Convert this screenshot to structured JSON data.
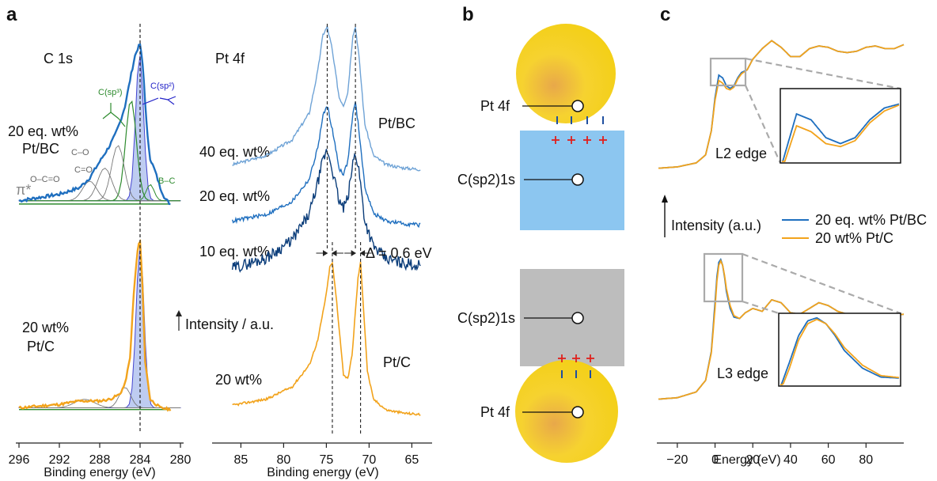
{
  "panels": {
    "a": "a",
    "b": "b",
    "c": "c"
  },
  "colors": {
    "pt_bc": "#1f6fbf",
    "pt_bc_light": "#6fa3d6",
    "pt_bc_dark": "#0b3d7a",
    "pt_c": "#f2a31c",
    "green": "#2e8b2e",
    "blue_fill": "#b3c4ef",
    "sp2_box": "#8cc6f0",
    "gray_box": "#bdbdbd",
    "gold": "#f5cc1c",
    "red_plus": "#e0201c"
  },
  "chart_data": [
    {
      "type": "line",
      "panel": "a-left",
      "title": "C 1s",
      "xlabel": "Binding energy (eV)",
      "xlim": [
        296,
        280
      ],
      "xticks": [
        "296",
        "292",
        "288",
        "284",
        "280"
      ],
      "dashed_line_x": 284,
      "series": [
        {
          "name": "20 eq. wt% Pt/BC",
          "x": [
            296,
            294,
            292,
            290,
            289,
            288,
            287,
            286.5,
            286,
            285.5,
            285,
            284.5,
            284.2,
            284,
            283.7,
            283.3,
            283,
            282.5,
            282,
            281.5,
            281
          ],
          "y": [
            0.04,
            0.06,
            0.08,
            0.12,
            0.18,
            0.28,
            0.38,
            0.44,
            0.52,
            0.62,
            0.78,
            0.93,
            0.98,
            1.0,
            0.85,
            0.45,
            0.3,
            0.22,
            0.12,
            0.05,
            0.02
          ]
        },
        {
          "name": "20 wt% Pt/C",
          "x": [
            296,
            294,
            292,
            290,
            288,
            287,
            286,
            285.5,
            285,
            284.6,
            284.2,
            284,
            283.8,
            283.5,
            283,
            282,
            281
          ],
          "y": [
            0.03,
            0.04,
            0.05,
            0.07,
            0.07,
            0.08,
            0.11,
            0.17,
            0.32,
            0.72,
            0.98,
            1.0,
            0.8,
            0.3,
            0.08,
            0.03,
            0.02
          ]
        }
      ],
      "annotations": [
        "C(sp³)",
        "C(sp²)",
        "C–O",
        "C=O",
        "O–C=O",
        "B–C",
        "π*"
      ],
      "sample_labels": [
        "20 eq. wt%",
        "Pt/BC",
        "20 wt%",
        "Pt/C"
      ]
    },
    {
      "type": "line",
      "panel": "a-right",
      "title": "Pt 4f",
      "xlabel": "Binding energy (eV)",
      "ylabel": "Intensity / a.u.",
      "xlim": [
        88,
        63
      ],
      "xticks": [
        "85",
        "80",
        "75",
        "70",
        "65"
      ],
      "peaks": {
        "Pt/BC 4f7/2": 71.6,
        "Pt/BC 4f5/2": 74.9,
        "Pt/C 4f7/2": 71.0,
        "Pt/C 4f5/2": 74.3
      },
      "shift_annotation": "Δ = 0.6 eV",
      "series": [
        {
          "name": "40 eq. wt%",
          "x": [
            86,
            82,
            79,
            77,
            76,
            75.4,
            74.9,
            74.4,
            73.5,
            73,
            72.5,
            71.9,
            71.6,
            71.2,
            70.5,
            69.5,
            68,
            66,
            64
          ],
          "y": [
            0.12,
            0.18,
            0.28,
            0.45,
            0.72,
            0.95,
            1.0,
            0.88,
            0.55,
            0.5,
            0.58,
            0.95,
            1.0,
            0.82,
            0.38,
            0.18,
            0.12,
            0.1,
            0.09
          ]
        },
        {
          "name": "20 eq. wt%",
          "x": [
            86,
            82,
            79,
            77,
            76,
            75.4,
            74.9,
            74.4,
            73.5,
            73,
            72.5,
            71.9,
            71.6,
            71.2,
            70.5,
            69.5,
            68,
            66,
            64
          ],
          "y": [
            0.1,
            0.15,
            0.25,
            0.42,
            0.66,
            0.9,
            0.98,
            0.83,
            0.5,
            0.46,
            0.55,
            0.92,
            1.0,
            0.8,
            0.36,
            0.16,
            0.1,
            0.08,
            0.07
          ]
        },
        {
          "name": "10 eq. wt%",
          "x": [
            86,
            82,
            79,
            77,
            76,
            75.4,
            74.9,
            74.4,
            73.5,
            73,
            72.5,
            71.9,
            71.6,
            71.2,
            70.5,
            69.5,
            68,
            66,
            64
          ],
          "y": [
            0.08,
            0.16,
            0.3,
            0.5,
            0.75,
            0.92,
            1.0,
            0.88,
            0.6,
            0.55,
            0.62,
            0.9,
            0.98,
            0.85,
            0.45,
            0.25,
            0.15,
            0.12,
            0.1
          ]
        },
        {
          "name": "20 wt%",
          "x": [
            86,
            82,
            79,
            77,
            76,
            75,
            74.6,
            74.3,
            73.8,
            73,
            72.5,
            72,
            71.3,
            71,
            70.7,
            70.2,
            69.5,
            68,
            66,
            64
          ],
          "y": [
            0.08,
            0.12,
            0.2,
            0.34,
            0.5,
            0.8,
            0.97,
            1.0,
            0.75,
            0.28,
            0.25,
            0.4,
            0.9,
            1.0,
            0.75,
            0.3,
            0.12,
            0.05,
            0.03,
            0.02
          ]
        }
      ],
      "sample_labels": [
        "Pt/BC",
        "Pt/C"
      ]
    },
    {
      "type": "diagram",
      "panel": "b",
      "labels": {
        "pt4f_top": "Pt 4f",
        "csp2_top": "C(sp2)1s",
        "csp2_bottom": "C(sp2)1s",
        "pt4f_bottom": "Pt 4f"
      }
    },
    {
      "type": "line",
      "panel": "c",
      "xlabel": "Energy (eV)",
      "ylabel": "Intensity (a.u.)",
      "xlim": [
        -30,
        100
      ],
      "xticks": [
        "-20",
        "0",
        "20",
        "40",
        "60",
        "80"
      ],
      "edge_labels": [
        "L2 edge",
        "L3 edge"
      ],
      "series": [
        {
          "name": "20 eq. wt% Pt/BC"
        },
        {
          "name": "20 wt% Pt/C"
        }
      ],
      "L2": {
        "x": [
          -30,
          -20,
          -10,
          -5,
          -2,
          0,
          2,
          4,
          6,
          8,
          10,
          12,
          14,
          17,
          20,
          25,
          30,
          35,
          40,
          45,
          50,
          55,
          60,
          65,
          70,
          75,
          80,
          85,
          90,
          95,
          100
        ],
        "pt_bc": [
          0.02,
          0.03,
          0.06,
          0.12,
          0.3,
          0.55,
          0.72,
          0.7,
          0.64,
          0.62,
          0.64,
          0.7,
          0.74,
          0.76,
          0.84,
          0.92,
          0.98,
          0.93,
          0.86,
          0.86,
          0.92,
          0.94,
          0.93,
          0.9,
          0.89,
          0.9,
          0.93,
          0.94,
          0.92,
          0.92,
          0.95
        ],
        "pt_c": [
          0.02,
          0.03,
          0.06,
          0.12,
          0.3,
          0.53,
          0.68,
          0.66,
          0.62,
          0.61,
          0.63,
          0.69,
          0.73,
          0.76,
          0.84,
          0.92,
          0.98,
          0.93,
          0.86,
          0.86,
          0.92,
          0.94,
          0.93,
          0.9,
          0.89,
          0.9,
          0.93,
          0.94,
          0.92,
          0.92,
          0.95
        ]
      },
      "L3": {
        "x": [
          -30,
          -20,
          -10,
          -5,
          -2,
          0,
          1,
          2,
          3,
          4,
          5,
          6,
          8,
          10,
          13,
          16,
          20,
          25,
          30,
          35,
          40,
          45,
          50,
          55,
          60,
          65,
          70,
          75,
          80,
          85,
          90,
          95,
          100
        ],
        "pt_bc": [
          0.03,
          0.04,
          0.08,
          0.16,
          0.36,
          0.7,
          0.88,
          0.98,
          1.0,
          0.96,
          0.88,
          0.78,
          0.66,
          0.6,
          0.59,
          0.63,
          0.66,
          0.64,
          0.72,
          0.7,
          0.63,
          0.62,
          0.66,
          0.7,
          0.68,
          0.64,
          0.62,
          0.61,
          0.61,
          0.62,
          0.62,
          0.61,
          0.62
        ],
        "pt_c": [
          0.03,
          0.04,
          0.08,
          0.16,
          0.35,
          0.66,
          0.85,
          0.96,
          0.99,
          0.96,
          0.89,
          0.8,
          0.68,
          0.61,
          0.59,
          0.63,
          0.66,
          0.64,
          0.72,
          0.7,
          0.63,
          0.62,
          0.66,
          0.7,
          0.68,
          0.64,
          0.62,
          0.61,
          0.61,
          0.62,
          0.62,
          0.61,
          0.62
        ]
      }
    }
  ]
}
